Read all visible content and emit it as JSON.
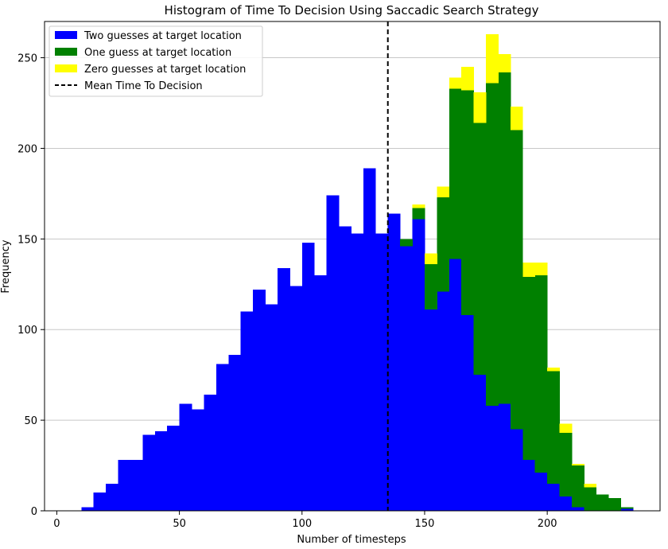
{
  "chart_data": {
    "type": "bar",
    "title": "Histogram of Time To Decision Using Saccadic Search Strategy",
    "xlabel": "Number of timesteps",
    "ylabel": "Frequency",
    "xlim": [
      -5,
      246
    ],
    "ylim": [
      0,
      270
    ],
    "xticks": [
      0,
      50,
      100,
      150,
      200
    ],
    "yticks": [
      0,
      50,
      100,
      150,
      200,
      250
    ],
    "grid": "horizontal",
    "legend_position": "top-left",
    "bin_width": 5,
    "bin_starts": [
      10,
      15,
      20,
      25,
      30,
      35,
      40,
      45,
      50,
      55,
      60,
      65,
      70,
      75,
      80,
      85,
      90,
      95,
      100,
      105,
      110,
      115,
      120,
      125,
      130,
      135,
      140,
      145,
      150,
      155,
      160,
      165,
      170,
      175,
      180,
      185,
      190,
      195,
      200,
      205,
      210,
      215,
      220,
      225,
      230
    ],
    "series": [
      {
        "name": "Two guesses at target location",
        "color": "#0000ff",
        "values": [
          2,
          10,
          15,
          28,
          28,
          42,
          44,
          47,
          59,
          56,
          64,
          81,
          86,
          110,
          122,
          114,
          134,
          124,
          148,
          130,
          174,
          157,
          153,
          189,
          153,
          164,
          150,
          161,
          111,
          121,
          139,
          108,
          75,
          58,
          59,
          45,
          28,
          21,
          15,
          8,
          2,
          0,
          0,
          0,
          1
        ]
      },
      {
        "name": "One guess at target location",
        "color": "#008000",
        "values": [
          0,
          0,
          0,
          0,
          0,
          0,
          0,
          0,
          0,
          0,
          0,
          0,
          0,
          0,
          0,
          0,
          0,
          0,
          0,
          0,
          0,
          0,
          0,
          0,
          0,
          0,
          -4,
          6,
          25,
          52,
          94,
          124,
          139,
          178,
          183,
          165,
          101,
          109,
          62,
          35,
          23,
          13,
          9,
          7,
          1
        ]
      },
      {
        "name": "Zero guesses at target location",
        "color": "#ffff00",
        "values": [
          0,
          0,
          0,
          0,
          0,
          0,
          0,
          0,
          0,
          0,
          0,
          0,
          0,
          0,
          0,
          0,
          0,
          0,
          0,
          0,
          0,
          0,
          0,
          0,
          0,
          0,
          0,
          2,
          6,
          6,
          6,
          13,
          17,
          27,
          10,
          13,
          8,
          7,
          2,
          5,
          1,
          2,
          0,
          0,
          0
        ]
      }
    ],
    "mean_line": {
      "name": "Mean Time To Decision",
      "x": 135,
      "style": "dashed",
      "color": "#000000"
    }
  }
}
